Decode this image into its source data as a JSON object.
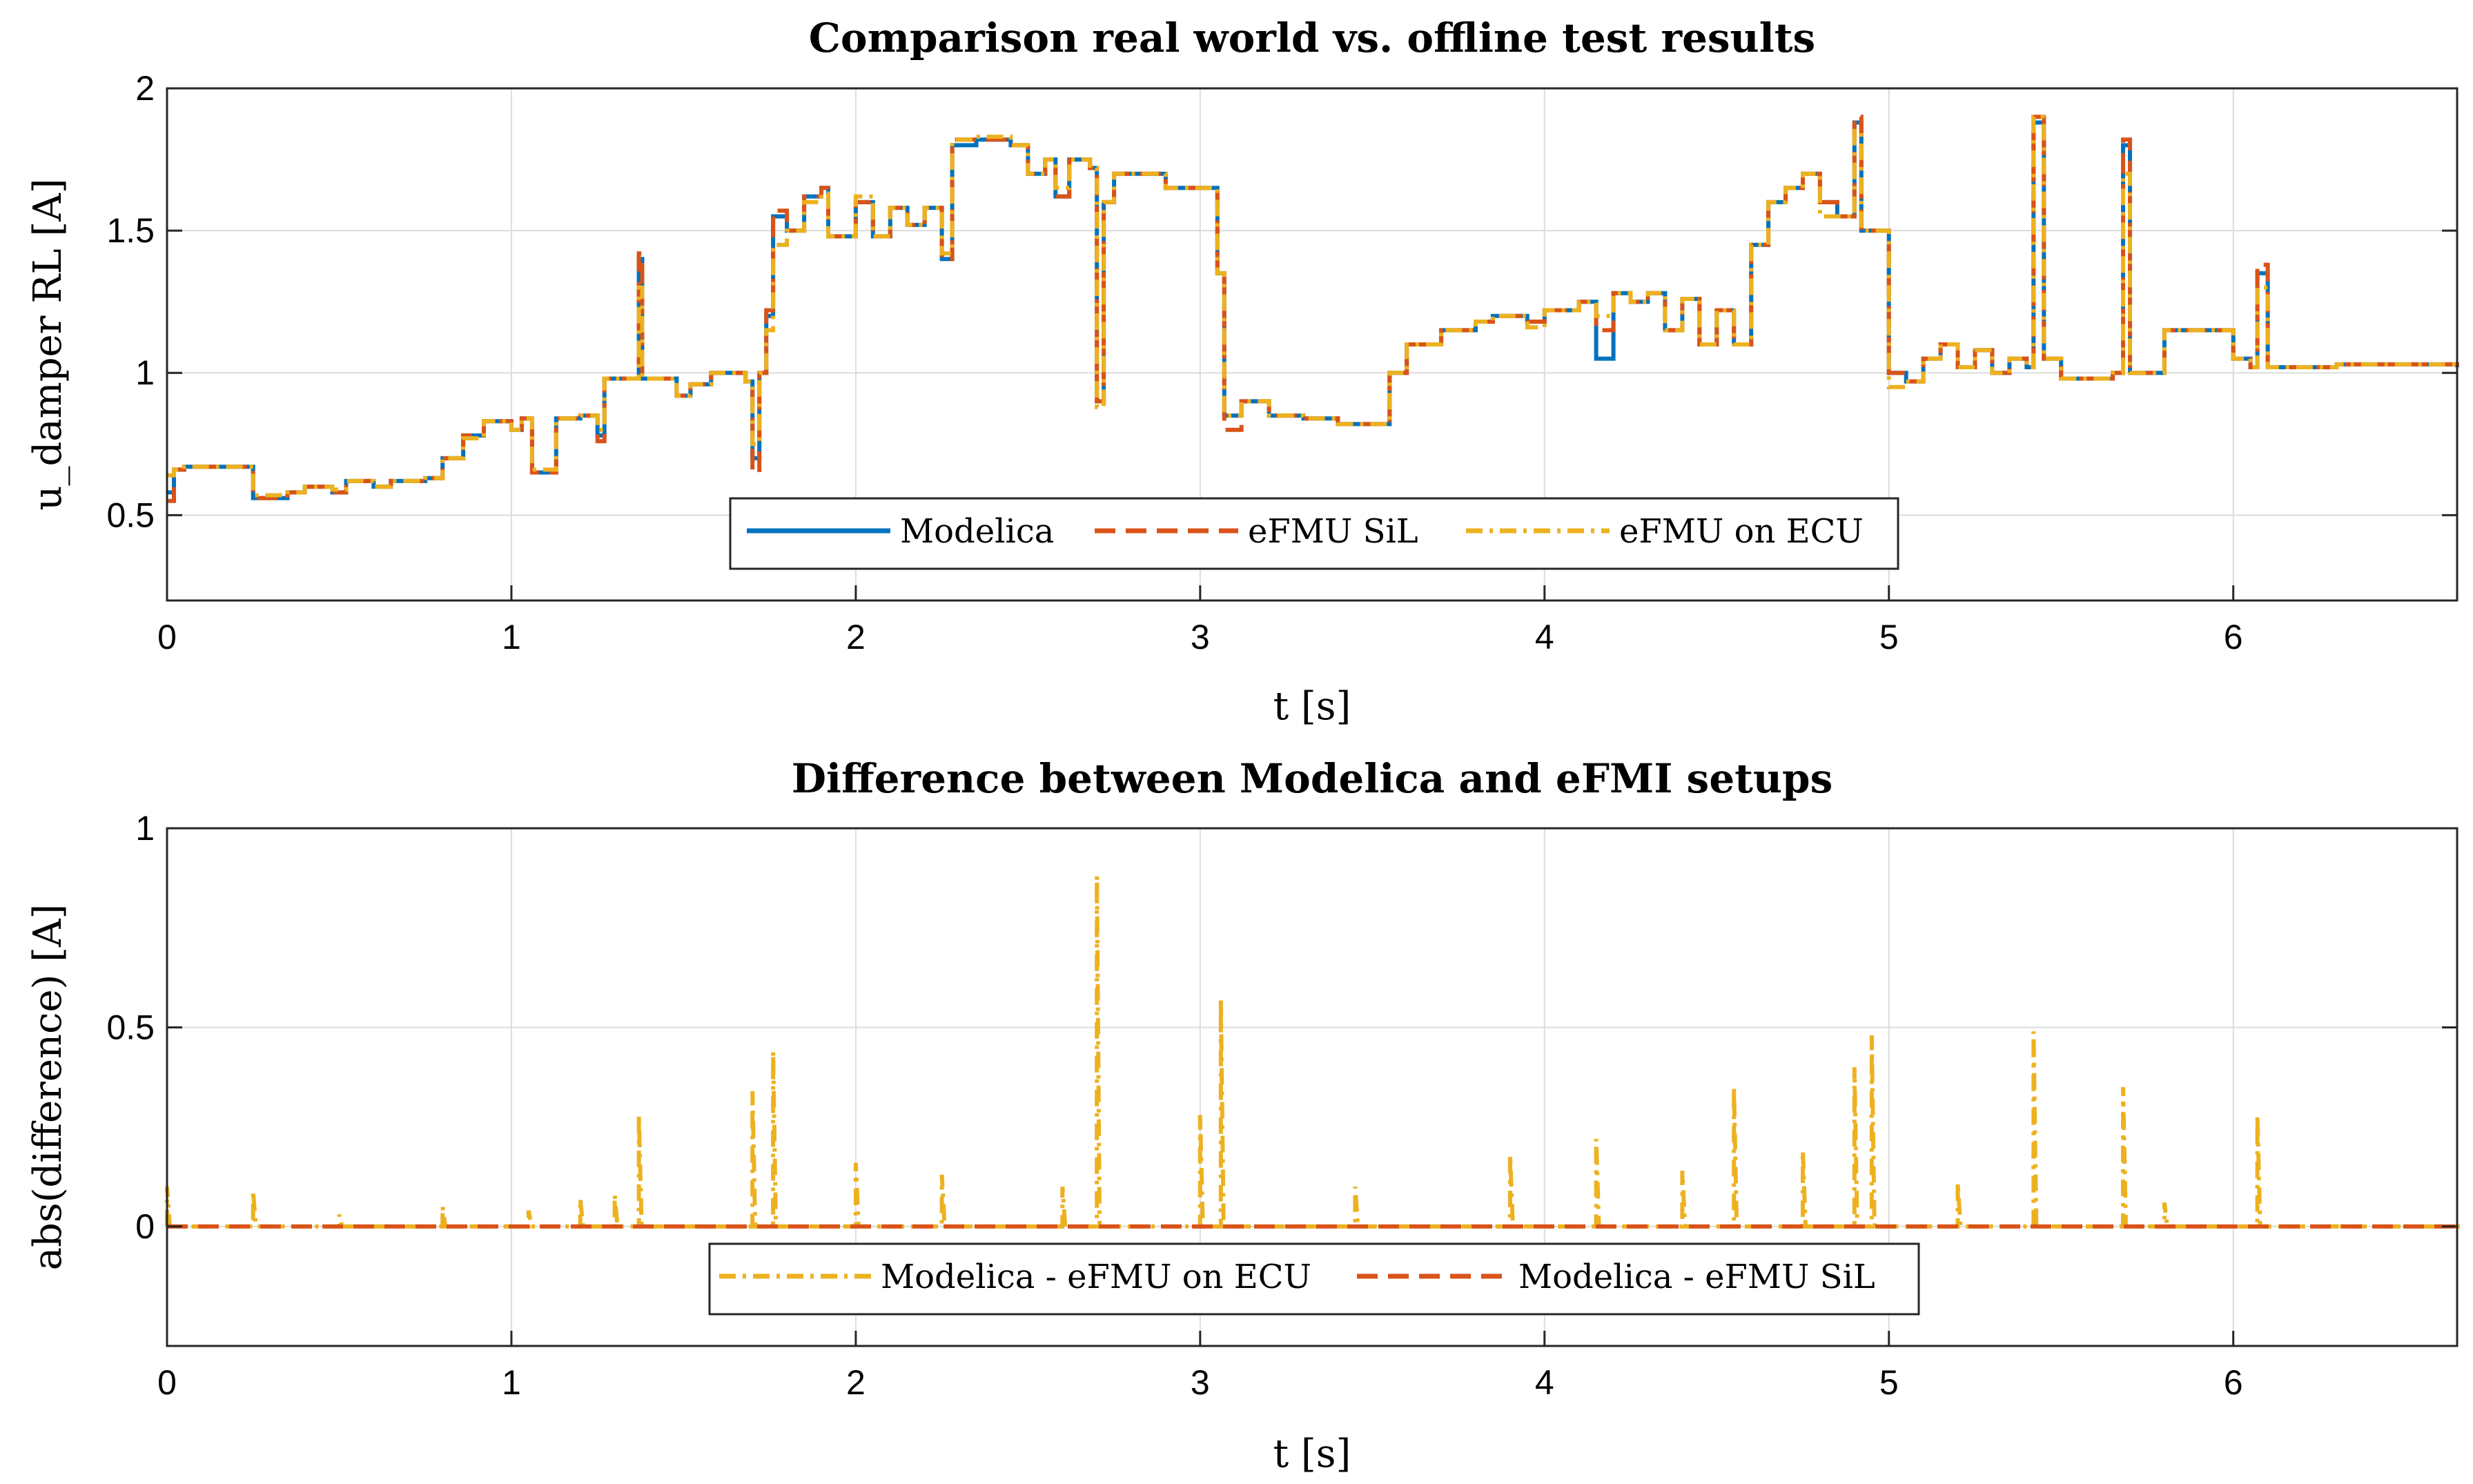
{
  "chart_data": [
    {
      "type": "line",
      "title": "Comparison real world vs. offline test results",
      "xlabel": "t [s]",
      "ylabel": "u_damper RL [A]",
      "xlim": [
        0,
        6.65
      ],
      "ylim": [
        0.2,
        2
      ],
      "xticks": [
        "0",
        "1",
        "2",
        "3",
        "4",
        "5",
        "6"
      ],
      "yticks": [
        "0.5",
        "1",
        "1.5",
        "2"
      ],
      "grid": true,
      "legend_position": "bottom-center",
      "series": [
        {
          "name": "Modelica",
          "color": "#0072BD",
          "style": "solid",
          "x": [
            0,
            0.02,
            0.05,
            0.12,
            0.24,
            0.25,
            0.35,
            0.4,
            0.48,
            0.52,
            0.6,
            0.65,
            0.75,
            0.8,
            0.86,
            0.92,
            1.0,
            1.03,
            1.06,
            1.13,
            1.2,
            1.25,
            1.27,
            1.35,
            1.37,
            1.38,
            1.42,
            1.48,
            1.52,
            1.58,
            1.62,
            1.68,
            1.7,
            1.72,
            1.74,
            1.76,
            1.8,
            1.85,
            1.9,
            1.92,
            2.0,
            2.05,
            2.1,
            2.15,
            2.2,
            2.25,
            2.28,
            2.35,
            2.45,
            2.5,
            2.55,
            2.58,
            2.62,
            2.68,
            2.7,
            2.72,
            2.75,
            2.9,
            3.0,
            3.05,
            3.07,
            3.12,
            3.2,
            3.3,
            3.4,
            3.5,
            3.55,
            3.6,
            3.7,
            3.8,
            3.85,
            3.9,
            3.95,
            4.0,
            4.05,
            4.1,
            4.15,
            4.2,
            4.25,
            4.3,
            4.35,
            4.4,
            4.45,
            4.5,
            4.55,
            4.6,
            4.65,
            4.7,
            4.75,
            4.8,
            4.85,
            4.9,
            4.92,
            4.95,
            5.0,
            5.05,
            5.1,
            5.15,
            5.2,
            5.25,
            5.3,
            5.35,
            5.4,
            5.42,
            5.45,
            5.5,
            5.6,
            5.65,
            5.68,
            5.7,
            5.75,
            5.8,
            5.9,
            6.0,
            6.05,
            6.07,
            6.1,
            6.3,
            6.5,
            6.65
          ],
          "y": [
            0.58,
            0.66,
            0.67,
            0.67,
            0.67,
            0.56,
            0.58,
            0.6,
            0.58,
            0.62,
            0.6,
            0.62,
            0.63,
            0.7,
            0.78,
            0.83,
            0.8,
            0.84,
            0.65,
            0.84,
            0.85,
            0.78,
            0.98,
            0.98,
            1.4,
            0.98,
            0.98,
            0.92,
            0.96,
            1.0,
            1.0,
            0.97,
            0.7,
            1.0,
            1.2,
            1.55,
            1.5,
            1.62,
            1.65,
            1.48,
            1.6,
            1.48,
            1.58,
            1.52,
            1.58,
            1.4,
            1.8,
            1.82,
            1.8,
            1.7,
            1.75,
            1.62,
            1.75,
            1.72,
            0.9,
            1.6,
            1.7,
            1.65,
            1.65,
            1.35,
            0.85,
            0.9,
            0.85,
            0.84,
            0.82,
            0.82,
            1.0,
            1.1,
            1.15,
            1.18,
            1.2,
            1.2,
            1.18,
            1.22,
            1.22,
            1.25,
            1.05,
            1.28,
            1.25,
            1.28,
            1.15,
            1.26,
            1.1,
            1.22,
            1.1,
            1.45,
            1.6,
            1.65,
            1.7,
            1.6,
            1.55,
            1.88,
            1.5,
            1.5,
            1.0,
            0.97,
            1.05,
            1.1,
            1.02,
            1.08,
            1.0,
            1.05,
            1.02,
            1.88,
            1.05,
            0.98,
            0.98,
            1.0,
            1.8,
            1.0,
            1.0,
            1.15,
            1.15,
            1.05,
            1.02,
            1.35,
            1.02,
            1.03,
            1.03,
            1.02
          ]
        },
        {
          "name": "eFMU SiL",
          "color": "#D95319",
          "style": "dashed",
          "x": [
            0,
            0.02,
            0.05,
            0.12,
            0.24,
            0.25,
            0.35,
            0.4,
            0.48,
            0.52,
            0.6,
            0.65,
            0.75,
            0.8,
            0.86,
            0.92,
            1.0,
            1.03,
            1.06,
            1.13,
            1.2,
            1.25,
            1.27,
            1.35,
            1.37,
            1.38,
            1.42,
            1.48,
            1.52,
            1.58,
            1.62,
            1.68,
            1.7,
            1.72,
            1.74,
            1.76,
            1.8,
            1.85,
            1.9,
            1.92,
            2.0,
            2.05,
            2.1,
            2.15,
            2.2,
            2.25,
            2.28,
            2.35,
            2.45,
            2.5,
            2.55,
            2.58,
            2.62,
            2.68,
            2.7,
            2.72,
            2.75,
            2.9,
            3.0,
            3.05,
            3.07,
            3.12,
            3.2,
            3.3,
            3.4,
            3.5,
            3.55,
            3.6,
            3.7,
            3.8,
            3.85,
            3.9,
            3.95,
            4.0,
            4.05,
            4.1,
            4.15,
            4.2,
            4.25,
            4.3,
            4.35,
            4.4,
            4.45,
            4.5,
            4.55,
            4.6,
            4.65,
            4.7,
            4.75,
            4.8,
            4.85,
            4.9,
            4.92,
            4.95,
            5.0,
            5.05,
            5.1,
            5.15,
            5.2,
            5.25,
            5.3,
            5.35,
            5.4,
            5.42,
            5.45,
            5.5,
            5.6,
            5.65,
            5.68,
            5.7,
            5.75,
            5.8,
            5.9,
            6.0,
            6.05,
            6.07,
            6.1,
            6.3,
            6.5,
            6.65
          ],
          "y": [
            0.55,
            0.66,
            0.67,
            0.67,
            0.67,
            0.56,
            0.58,
            0.6,
            0.58,
            0.62,
            0.6,
            0.62,
            0.63,
            0.7,
            0.78,
            0.83,
            0.8,
            0.84,
            0.65,
            0.84,
            0.85,
            0.76,
            0.98,
            0.98,
            1.42,
            0.98,
            0.98,
            0.92,
            0.96,
            1.0,
            1.0,
            0.97,
            0.65,
            1.0,
            1.22,
            1.57,
            1.5,
            1.62,
            1.65,
            1.48,
            1.6,
            1.48,
            1.58,
            1.52,
            1.58,
            1.4,
            1.82,
            1.82,
            1.8,
            1.7,
            1.75,
            1.62,
            1.75,
            1.72,
            0.9,
            1.6,
            1.7,
            1.65,
            1.65,
            1.35,
            0.8,
            0.9,
            0.85,
            0.84,
            0.82,
            0.82,
            1.0,
            1.1,
            1.15,
            1.18,
            1.2,
            1.2,
            1.18,
            1.22,
            1.22,
            1.25,
            1.15,
            1.28,
            1.25,
            1.28,
            1.15,
            1.26,
            1.1,
            1.22,
            1.1,
            1.45,
            1.6,
            1.65,
            1.7,
            1.6,
            1.55,
            1.9,
            1.5,
            1.5,
            1.0,
            0.97,
            1.05,
            1.1,
            1.02,
            1.08,
            1.0,
            1.05,
            1.02,
            1.9,
            1.05,
            0.98,
            0.98,
            1.0,
            1.82,
            1.0,
            1.0,
            1.15,
            1.15,
            1.05,
            1.02,
            1.38,
            1.02,
            1.03,
            1.03,
            1.02
          ]
        },
        {
          "name": "eFMU on ECU",
          "color": "#EDB120",
          "style": "dashdot",
          "x": [
            0,
            0.02,
            0.05,
            0.12,
            0.24,
            0.25,
            0.35,
            0.4,
            0.48,
            0.52,
            0.6,
            0.65,
            0.75,
            0.8,
            0.86,
            0.92,
            1.0,
            1.03,
            1.06,
            1.13,
            1.2,
            1.25,
            1.27,
            1.35,
            1.37,
            1.38,
            1.42,
            1.48,
            1.52,
            1.58,
            1.62,
            1.68,
            1.7,
            1.72,
            1.74,
            1.76,
            1.8,
            1.85,
            1.9,
            1.92,
            2.0,
            2.05,
            2.1,
            2.15,
            2.2,
            2.25,
            2.28,
            2.35,
            2.45,
            2.5,
            2.55,
            2.58,
            2.62,
            2.68,
            2.7,
            2.72,
            2.75,
            2.9,
            3.0,
            3.05,
            3.07,
            3.12,
            3.2,
            3.3,
            3.4,
            3.5,
            3.55,
            3.6,
            3.7,
            3.8,
            3.85,
            3.9,
            3.95,
            4.0,
            4.05,
            4.1,
            4.15,
            4.2,
            4.25,
            4.3,
            4.35,
            4.4,
            4.45,
            4.5,
            4.55,
            4.6,
            4.65,
            4.7,
            4.75,
            4.8,
            4.85,
            4.9,
            4.92,
            4.95,
            5.0,
            5.05,
            5.1,
            5.15,
            5.2,
            5.25,
            5.3,
            5.35,
            5.4,
            5.42,
            5.45,
            5.5,
            5.6,
            5.65,
            5.68,
            5.7,
            5.75,
            5.8,
            5.9,
            6.0,
            6.05,
            6.07,
            6.1,
            6.3,
            6.5,
            6.65
          ],
          "y": [
            0.64,
            0.66,
            0.67,
            0.67,
            0.67,
            0.57,
            0.58,
            0.6,
            0.59,
            0.62,
            0.6,
            0.62,
            0.63,
            0.7,
            0.77,
            0.83,
            0.8,
            0.84,
            0.66,
            0.84,
            0.85,
            0.8,
            0.98,
            0.98,
            1.3,
            0.98,
            0.98,
            0.92,
            0.96,
            1.0,
            1.0,
            0.97,
            0.75,
            1.0,
            1.15,
            1.45,
            1.5,
            1.6,
            1.63,
            1.48,
            1.62,
            1.48,
            1.58,
            1.52,
            1.58,
            1.42,
            1.82,
            1.83,
            1.8,
            1.7,
            1.75,
            1.65,
            1.75,
            1.72,
            0.88,
            1.6,
            1.7,
            1.65,
            1.65,
            1.35,
            0.85,
            0.9,
            0.85,
            0.84,
            0.82,
            0.82,
            1.0,
            1.1,
            1.15,
            1.18,
            1.2,
            1.2,
            1.16,
            1.22,
            1.22,
            1.25,
            1.2,
            1.28,
            1.25,
            1.28,
            1.15,
            1.26,
            1.1,
            1.22,
            1.1,
            1.45,
            1.6,
            1.65,
            1.7,
            1.55,
            1.55,
            1.85,
            1.5,
            1.5,
            0.95,
            0.97,
            1.05,
            1.1,
            1.02,
            1.08,
            1.0,
            1.05,
            1.02,
            1.9,
            1.05,
            0.98,
            0.98,
            1.0,
            1.7,
            1.0,
            1.0,
            1.15,
            1.15,
            1.05,
            1.02,
            1.3,
            1.02,
            1.03,
            1.03,
            1.02
          ]
        }
      ]
    },
    {
      "type": "line",
      "title": "Difference between Modelica and eFMI setups",
      "xlabel": "t [s]",
      "ylabel": "abs(difference) [A]",
      "xlim": [
        0,
        6.65
      ],
      "ylim": [
        -0.3,
        1
      ],
      "xticks": [
        "0",
        "1",
        "2",
        "3",
        "4",
        "5",
        "6"
      ],
      "yticks": [
        "0",
        "0.5",
        "1"
      ],
      "grid": true,
      "legend_position": "bottom-center",
      "series": [
        {
          "name": "Modelica - eFMU on ECU",
          "color": "#EDB120",
          "style": "dashdot",
          "x": [
            0,
            0.02,
            0.05,
            0.24,
            0.25,
            0.5,
            0.8,
            1.05,
            1.2,
            1.3,
            1.37,
            1.7,
            1.76,
            2.0,
            2.25,
            2.6,
            2.7,
            3.0,
            3.06,
            3.45,
            3.9,
            4.15,
            4.4,
            4.55,
            4.75,
            4.9,
            4.95,
            5.2,
            5.42,
            5.68,
            5.8,
            6.07,
            6.3,
            6.65
          ],
          "y": [
            0.1,
            0.0,
            0.0,
            0.0,
            0.09,
            0.03,
            0.05,
            0.04,
            0.07,
            0.08,
            0.28,
            0.34,
            0.44,
            0.16,
            0.13,
            0.1,
            0.88,
            0.28,
            0.57,
            0.1,
            0.18,
            0.22,
            0.14,
            0.35,
            0.19,
            0.4,
            0.48,
            0.11,
            0.49,
            0.35,
            0.06,
            0.28,
            0.01,
            0.0
          ]
        },
        {
          "name": "Modelica - eFMU SiL",
          "color": "#D95319",
          "style": "dashed",
          "x": [
            0,
            6.65
          ],
          "y": [
            0.0,
            0.0
          ]
        }
      ]
    }
  ]
}
